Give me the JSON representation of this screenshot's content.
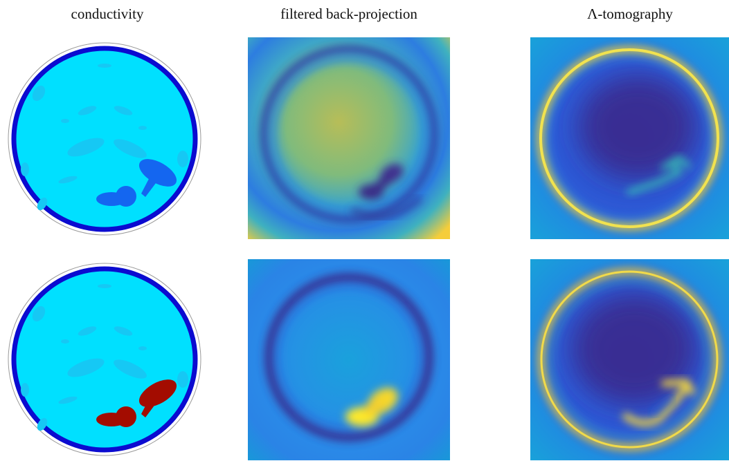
{
  "columns": [
    {
      "title": "conductivity"
    },
    {
      "title": "filtered back-projection"
    },
    {
      "title": "Λ-tomography"
    }
  ],
  "rows": [
    {
      "inclusion_color": "#1466f0"
    },
    {
      "inclusion_color": "#a30c00"
    }
  ],
  "colors": {
    "background_tissue": "#00e0ff",
    "organ_shapes": "#16c8f4",
    "boundary_ring": "#0b0bd0",
    "outline": "#9a9a9a",
    "parula_low": "#352a87",
    "parula_mid": "#1aa9e0",
    "parula_high": "#f9fb0e"
  }
}
